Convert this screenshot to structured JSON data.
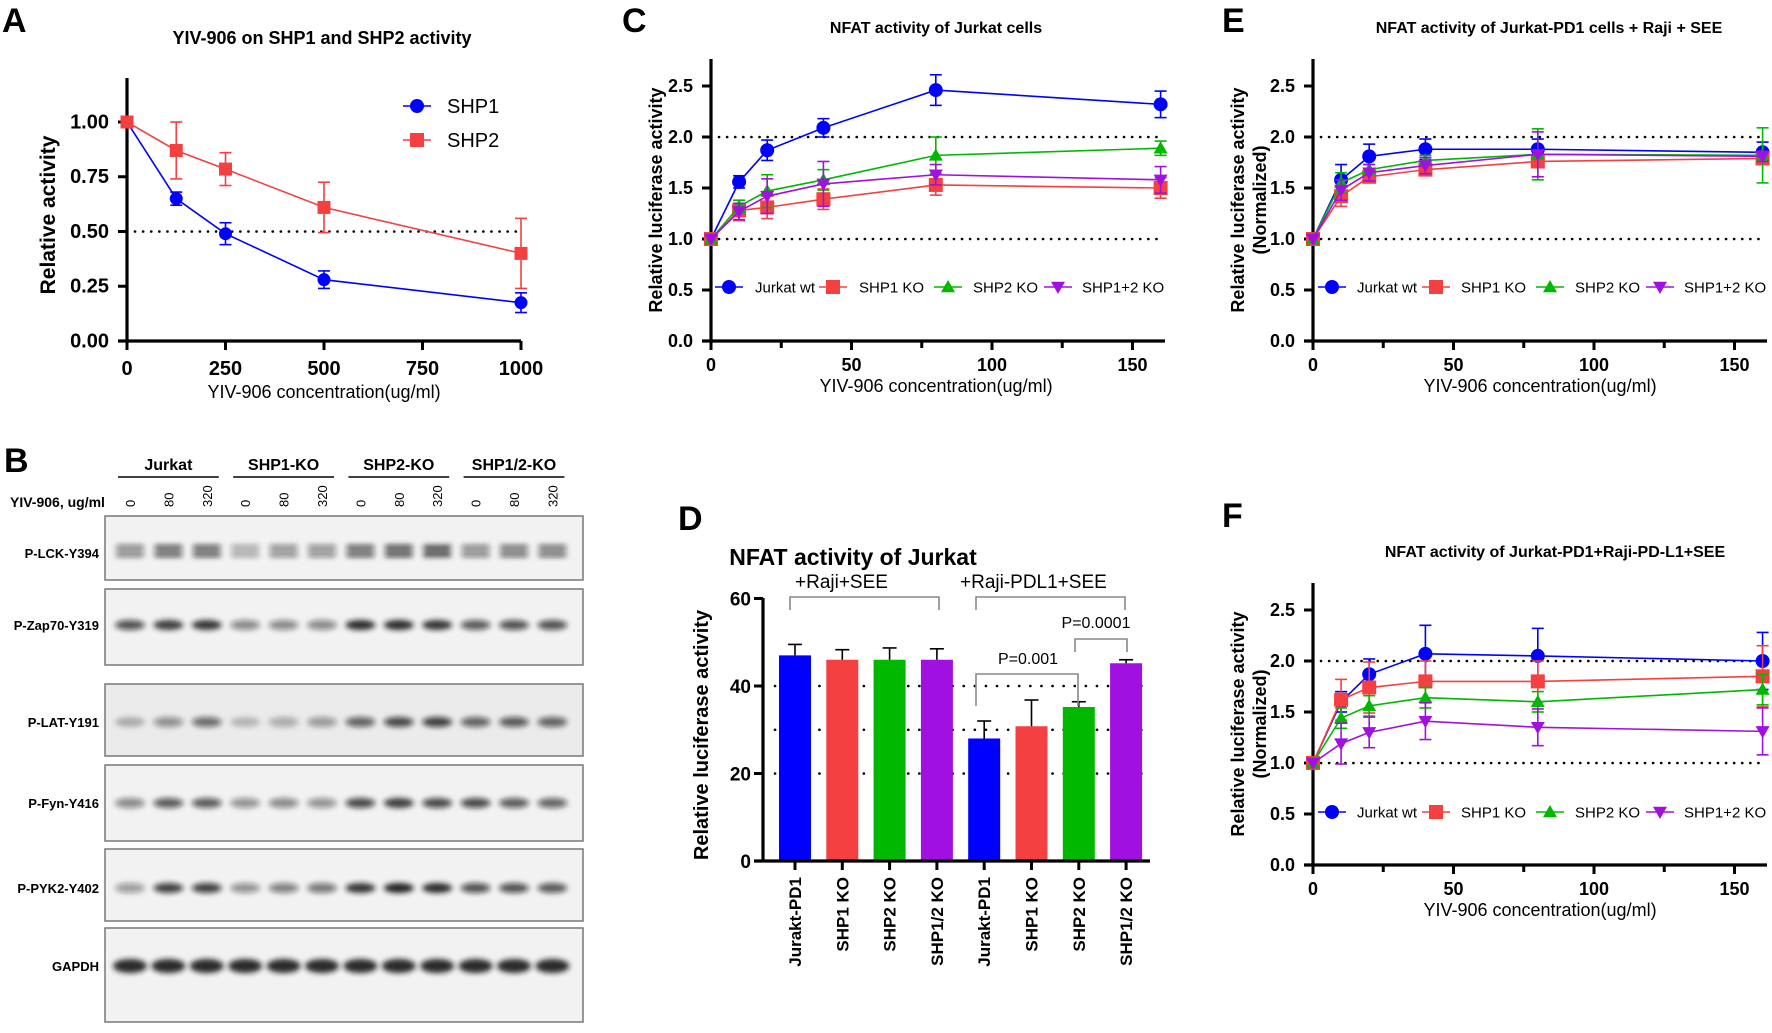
{
  "chart_data": [
    {
      "panel": "A",
      "type": "line",
      "title": "YIV-906 on SHP1 and SHP2 activity",
      "xlabel": "YIV-906 concentration(ug/ml)",
      "ylabel": "Relative activity",
      "xlim": [
        0,
        1000
      ],
      "ylim": [
        0,
        1.2
      ],
      "xticks": [
        "0",
        "250",
        "500",
        "750",
        "1000"
      ],
      "yticks": [
        "0.00",
        "0.25",
        "0.50",
        "0.75",
        "1.00"
      ],
      "reference_lines": [
        0.5
      ],
      "legend_placement": "top-right",
      "series": [
        {
          "name": "SHP1",
          "color": "#0000ff",
          "marker": "circle",
          "x": [
            0,
            125,
            250,
            500,
            1000
          ],
          "y": [
            1.0,
            0.65,
            0.49,
            0.28,
            0.175
          ],
          "err": [
            0,
            0.03,
            0.05,
            0.04,
            0.045
          ]
        },
        {
          "name": "SHP2",
          "color": "#f44040",
          "marker": "square",
          "x": [
            0,
            125,
            250,
            500,
            1000
          ],
          "y": [
            1.0,
            0.87,
            0.785,
            0.61,
            0.4
          ],
          "err": [
            0,
            0.13,
            0.075,
            0.115,
            0.16
          ]
        }
      ]
    },
    {
      "panel": "C",
      "type": "line",
      "title": "NFAT activity of Jurkat cells",
      "xlabel": "YIV-906 concentration(ug/ml)",
      "ylabel": "Relative luciferase activity",
      "xlim": [
        0,
        160
      ],
      "ylim": [
        0,
        2.75
      ],
      "xticks": [
        "0",
        "50",
        "100",
        "150"
      ],
      "xminor": [
        25,
        75,
        125
      ],
      "yticks": [
        "0.0",
        "0.5",
        "1.0",
        "1.5",
        "2.0",
        "2.5"
      ],
      "reference_lines": [
        1.0,
        2.0
      ],
      "legend_placement": "bottom-inside",
      "series": [
        {
          "name": "Jurkat wt",
          "color": "#0000ff",
          "marker": "circle",
          "x": [
            0,
            10,
            20,
            40,
            80,
            160
          ],
          "y": [
            1.0,
            1.56,
            1.87,
            2.09,
            2.46,
            2.32
          ],
          "err": [
            0,
            0.06,
            0.1,
            0.09,
            0.15,
            0.13
          ]
        },
        {
          "name": "SHP1 KO",
          "color": "#f44040",
          "marker": "square",
          "x": [
            0,
            10,
            20,
            40,
            80,
            160
          ],
          "y": [
            1.0,
            1.28,
            1.31,
            1.39,
            1.53,
            1.5
          ],
          "err": [
            0,
            0.1,
            0.11,
            0.1,
            0.1,
            0.1
          ]
        },
        {
          "name": "SHP2 KO",
          "color": "#00b800",
          "marker": "triangle-up",
          "x": [
            0,
            10,
            20,
            40,
            80,
            160
          ],
          "y": [
            1.0,
            1.32,
            1.47,
            1.58,
            1.82,
            1.89
          ],
          "err": [
            0,
            0.06,
            0.16,
            0.1,
            0.18,
            0.07
          ]
        },
        {
          "name": "SHP1+2 KO",
          "color": "#a010e0",
          "marker": "triangle-down",
          "x": [
            0,
            10,
            20,
            40,
            80,
            160
          ],
          "y": [
            1.0,
            1.27,
            1.42,
            1.54,
            1.63,
            1.58
          ],
          "err": [
            0,
            0.08,
            0.17,
            0.22,
            0.1,
            0.13
          ]
        }
      ]
    },
    {
      "panel": "D",
      "type": "bar",
      "title": "NFAT activity of Jurkat",
      "ylabel": "Relative luciferase activity",
      "ylim": [
        0,
        60
      ],
      "yticks": [
        "0",
        "20",
        "40",
        "60"
      ],
      "reference_lines": [
        20,
        30,
        40
      ],
      "groups": [
        "+Raji+SEE",
        "+Raji-PDL1+SEE"
      ],
      "categories": [
        "Jurakt-PD1",
        "SHP1 KO",
        "SHP2 KO",
        "SHP1/2 KO",
        "Jurakt-PD1",
        "SHP1 KO",
        "SHP2 KO",
        "SHP1/2 KO"
      ],
      "values": [
        47,
        46,
        46,
        46,
        28,
        30.8,
        35.2,
        45.2
      ],
      "err": [
        2.5,
        2.3,
        2.7,
        2.5,
        4,
        6,
        1.2,
        0.8
      ],
      "colors": [
        "#0000ff",
        "#f44040",
        "#00b800",
        "#a010e0",
        "#0000ff",
        "#f44040",
        "#00b800",
        "#a010e0"
      ],
      "annotations": [
        {
          "text": "P=0.001",
          "from": 4,
          "to": 6
        },
        {
          "text": "P=0.0001",
          "from": 6,
          "to": 7
        }
      ]
    },
    {
      "panel": "E",
      "type": "line",
      "title": "NFAT activity of Jurkat-PD1 cells + Raji + SEE",
      "xlabel": "YIV-906 concentration(ug/ml)",
      "ylabel": "Relative luciferase activity",
      "ylabel2": "(Normalized)",
      "xlim": [
        0,
        160
      ],
      "ylim": [
        0,
        2.75
      ],
      "xticks": [
        "0",
        "50",
        "100",
        "150"
      ],
      "xminor": [
        25,
        75,
        125
      ],
      "yticks": [
        "0.0",
        "0.5",
        "1.0",
        "1.5",
        "2.0",
        "2.5"
      ],
      "reference_lines": [
        1.0,
        2.0
      ],
      "legend_placement": "bottom-inside",
      "series": [
        {
          "name": "Jurkat wt",
          "color": "#0000ff",
          "marker": "circle",
          "x": [
            0,
            10,
            20,
            40,
            80,
            160
          ],
          "y": [
            1.0,
            1.58,
            1.81,
            1.88,
            1.88,
            1.85
          ],
          "err": [
            0,
            0.15,
            0.12,
            0.1,
            0.1,
            0.1
          ]
        },
        {
          "name": "SHP1 KO",
          "color": "#f44040",
          "marker": "square",
          "x": [
            0,
            10,
            20,
            40,
            80,
            160
          ],
          "y": [
            1.0,
            1.42,
            1.61,
            1.68,
            1.76,
            1.79
          ],
          "err": [
            0,
            0.1,
            0.05,
            0.05,
            0.05,
            0.05
          ]
        },
        {
          "name": "SHP2 KO",
          "color": "#00b800",
          "marker": "triangle-up",
          "x": [
            0,
            10,
            20,
            40,
            80,
            160
          ],
          "y": [
            1.0,
            1.55,
            1.68,
            1.77,
            1.83,
            1.82
          ],
          "err": [
            0,
            0.1,
            0.05,
            0.05,
            0.25,
            0.27
          ]
        },
        {
          "name": "SHP1+2 KO",
          "color": "#a010e0",
          "marker": "triangle-down",
          "x": [
            0,
            10,
            20,
            40,
            80,
            160
          ],
          "y": [
            1.0,
            1.48,
            1.65,
            1.72,
            1.83,
            1.81
          ],
          "err": [
            0,
            0.1,
            0.08,
            0.08,
            0.22,
            0.05
          ]
        }
      ]
    },
    {
      "panel": "F",
      "type": "line",
      "title": "NFAT activity of Jurkat-PD1+Raji-PD-L1+SEE",
      "xlabel": "YIV-906 concentration(ug/ml)",
      "ylabel": "Relative luciferase activity",
      "ylabel2": "(Normalized)",
      "xlim": [
        0,
        160
      ],
      "ylim": [
        0,
        2.75
      ],
      "xticks": [
        "0",
        "50",
        "100",
        "150"
      ],
      "xminor": [
        25,
        75,
        125
      ],
      "yticks": [
        "0.0",
        "0.5",
        "1.0",
        "1.5",
        "2.0",
        "2.5"
      ],
      "reference_lines": [
        1.0,
        2.0
      ],
      "legend_placement": "bottom-inside",
      "series": [
        {
          "name": "Jurkat wt",
          "color": "#0000ff",
          "marker": "circle",
          "x": [
            0,
            10,
            20,
            40,
            80,
            160
          ],
          "y": [
            1.0,
            1.6,
            1.87,
            2.07,
            2.05,
            2.0
          ],
          "err": [
            0,
            0.1,
            0.15,
            0.28,
            0.27,
            0.28
          ]
        },
        {
          "name": "SHP1 KO",
          "color": "#f44040",
          "marker": "square",
          "x": [
            0,
            10,
            20,
            40,
            80,
            160
          ],
          "y": [
            1.0,
            1.62,
            1.74,
            1.8,
            1.8,
            1.85
          ],
          "err": [
            0,
            0.2,
            0.25,
            0.2,
            0.2,
            0.3
          ]
        },
        {
          "name": "SHP2 KO",
          "color": "#00b800",
          "marker": "triangle-up",
          "x": [
            0,
            10,
            20,
            40,
            80,
            160
          ],
          "y": [
            1.0,
            1.44,
            1.56,
            1.64,
            1.6,
            1.72
          ],
          "err": [
            0,
            0.1,
            0.1,
            0.1,
            0.1,
            0.15
          ]
        },
        {
          "name": "SHP1+2 KO",
          "color": "#a010e0",
          "marker": "triangle-down",
          "x": [
            0,
            10,
            20,
            40,
            80,
            160
          ],
          "y": [
            1.0,
            1.19,
            1.3,
            1.41,
            1.35,
            1.31
          ],
          "err": [
            0,
            0.2,
            0.15,
            0.18,
            0.18,
            0.23
          ]
        }
      ]
    }
  ],
  "blot": {
    "panel": "B",
    "dose_label": "YIV-906, ug/ml",
    "groups": [
      "Jurkat",
      "SHP1-KO",
      "SHP2-KO",
      "SHP1/2-KO"
    ],
    "doses": [
      "0",
      "80",
      "320",
      "0",
      "80",
      "320",
      "0",
      "80",
      "320",
      "0",
      "80",
      "320"
    ],
    "rows": [
      {
        "label": "P-LCK-Y394",
        "intensity": [
          0.5,
          0.7,
          0.7,
          0.3,
          0.45,
          0.45,
          0.7,
          0.8,
          0.85,
          0.5,
          0.6,
          0.6
        ]
      },
      {
        "label": "P-Zap70-Y319",
        "intensity": [
          0.7,
          0.85,
          0.9,
          0.4,
          0.4,
          0.4,
          0.95,
          0.95,
          0.9,
          0.65,
          0.7,
          0.7
        ]
      },
      {
        "label": "P-LAT-Y191",
        "intensity": [
          0.15,
          0.35,
          0.55,
          0.1,
          0.2,
          0.3,
          0.6,
          0.75,
          0.8,
          0.6,
          0.65,
          0.6
        ]
      },
      {
        "label": "P-Fyn-Y416",
        "intensity": [
          0.4,
          0.65,
          0.65,
          0.35,
          0.4,
          0.35,
          0.75,
          0.85,
          0.75,
          0.75,
          0.65,
          0.6
        ]
      },
      {
        "label": "P-PYK2-Y402",
        "intensity": [
          0.3,
          0.8,
          0.8,
          0.35,
          0.45,
          0.5,
          0.9,
          1.0,
          0.95,
          0.7,
          0.7,
          0.65
        ]
      },
      {
        "label": "GAPDH",
        "intensity": [
          0.95,
          0.95,
          0.95,
          0.95,
          0.95,
          0.95,
          0.95,
          0.95,
          0.95,
          0.95,
          0.95,
          0.95
        ]
      }
    ]
  }
}
